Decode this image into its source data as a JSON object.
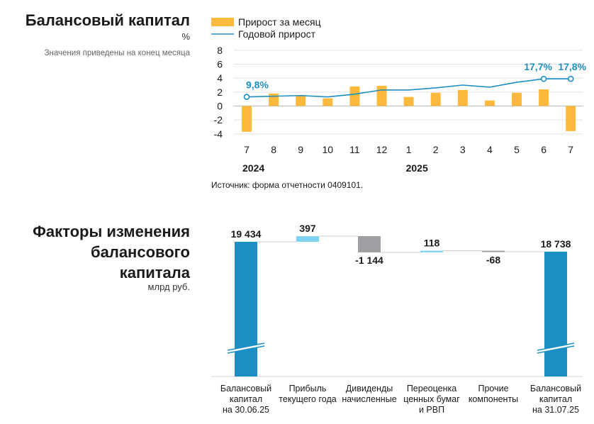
{
  "section1": {
    "title": "Балансовый капитал",
    "unit": "%",
    "note": "Значения приведены на конец месяца",
    "source": "Источник: форма отчетности 0409101."
  },
  "section2": {
    "title_line1": "Факторы изменения",
    "title_line2": "балансового",
    "title_line3": "капитала",
    "unit": "млрд руб."
  },
  "colors": {
    "bar": "#fdb93c",
    "line": "#1b8fc4",
    "capital": "#1b8fc4",
    "light_blue": "#7fd3f0",
    "gray": "#9d9fa3"
  },
  "chart_data": [
    {
      "type": "bar",
      "categories": [
        "7",
        "8",
        "9",
        "10",
        "11",
        "12",
        "1",
        "2",
        "3",
        "4",
        "5",
        "6",
        "7"
      ],
      "year_labels": [
        "2024",
        "2025"
      ],
      "series": [
        {
          "name": "Прирост за месяц",
          "kind": "bar",
          "values": [
            -3.7,
            1.8,
            1.5,
            1.1,
            2.8,
            2.9,
            1.3,
            1.9,
            2.3,
            0.8,
            1.9,
            2.4,
            -3.6
          ]
        },
        {
          "name": "Годовой прирост",
          "kind": "line",
          "values": [
            1.3,
            1.4,
            1.5,
            1.3,
            1.7,
            2.3,
            2.3,
            2.6,
            3.0,
            2.7,
            3.4,
            3.9,
            3.9
          ]
        }
      ],
      "point_labels": [
        {
          "index": 0,
          "text": "9,8%"
        },
        {
          "index": 11,
          "text": "17,7%"
        },
        {
          "index": 12,
          "text": "17,8%"
        }
      ],
      "yticks": [
        "8",
        "6",
        "4",
        "2",
        "0",
        "-2",
        "-4"
      ],
      "ylim": [
        -4,
        8
      ],
      "grid": true,
      "legend": "top"
    },
    {
      "type": "waterfall",
      "categories": [
        [
          "Балансовый",
          "капитал",
          "на 30.06.25"
        ],
        [
          "Прибыль",
          "текущего года"
        ],
        [
          "Дивиденды",
          "начисленные"
        ],
        [
          "Переоценка",
          "ценных бумаг",
          "и РВП"
        ],
        [
          "Прочие",
          "компоненты"
        ],
        [
          "Балансовый",
          "капитал",
          "на 31.07.25"
        ]
      ],
      "labels": [
        "19 434",
        "397",
        "-1 144",
        "118",
        "-68",
        "18 738"
      ],
      "values": [
        19434,
        397,
        -1144,
        118,
        -68,
        18738
      ],
      "kinds": [
        "total",
        "increase",
        "decrease",
        "increase",
        "decrease",
        "total"
      ],
      "axis_break": true
    }
  ]
}
